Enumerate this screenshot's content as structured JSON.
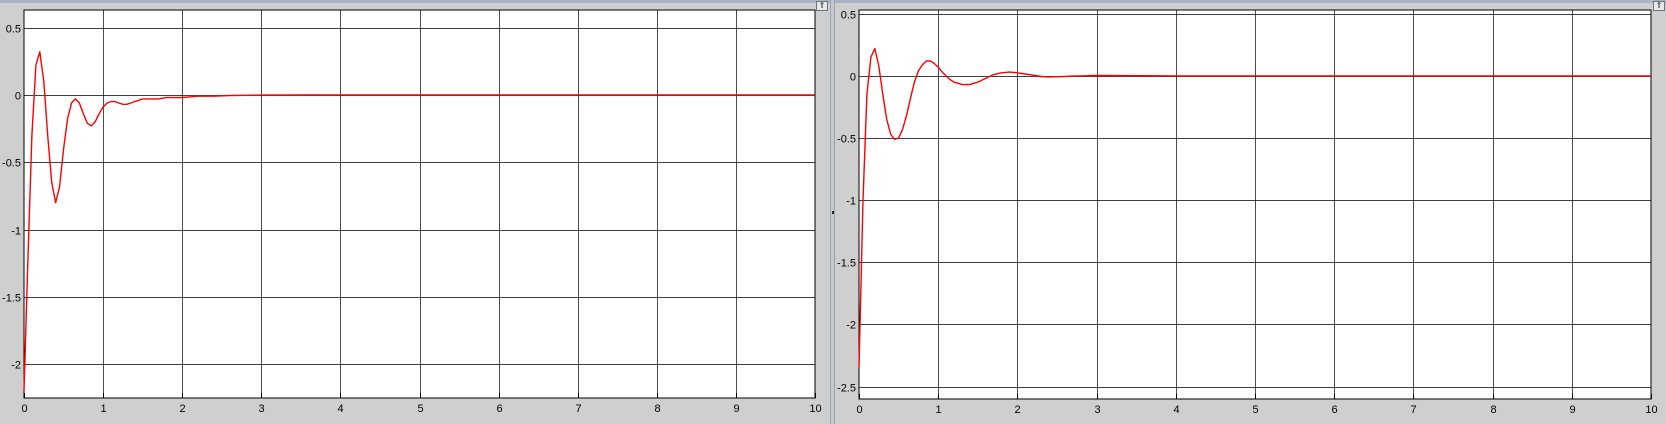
{
  "panels": [
    {
      "dock_button_icon": "maximize-icon",
      "dock_button_glyph": "⇑"
    },
    {
      "dock_button_icon": "maximize-icon",
      "dock_button_glyph": "⇑"
    }
  ],
  "colors": {
    "trace": "#ff0000",
    "grid": "#000000",
    "plot_bg": "#ffffff",
    "frame_bg": "#cfcfcf"
  },
  "chart_data": [
    {
      "type": "line",
      "title": "",
      "xlabel": "",
      "ylabel": "",
      "xlim": [
        0,
        10
      ],
      "ylim": [
        -2.25,
        0.63
      ],
      "xticks": [
        0,
        1,
        2,
        3,
        4,
        5,
        6,
        7,
        8,
        9,
        10
      ],
      "xtick_labels": [
        "0",
        "1",
        "2",
        "3",
        "4",
        "5",
        "6",
        "7",
        "8",
        "9",
        "10"
      ],
      "yticks": [
        0.5,
        0,
        -0.5,
        -1,
        -1.5,
        -2
      ],
      "ytick_labels": [
        "0.5",
        "0",
        "-0.5",
        "-1",
        "-1.5",
        "-2"
      ],
      "grid": true,
      "legend": "none",
      "series": [
        {
          "color": "#ff0000",
          "x": [
            0,
            0.05,
            0.1,
            0.15,
            0.2,
            0.25,
            0.3,
            0.35,
            0.4,
            0.45,
            0.5,
            0.55,
            0.6,
            0.65,
            0.7,
            0.75,
            0.8,
            0.85,
            0.9,
            0.95,
            1.0,
            1.05,
            1.1,
            1.15,
            1.2,
            1.25,
            1.3,
            1.35,
            1.4,
            1.45,
            1.5,
            1.6,
            1.7,
            1.8,
            1.9,
            2.0,
            2.2,
            2.4,
            2.6,
            2.8,
            3.0,
            3.5,
            4.0,
            5.0,
            6.0,
            7.0,
            8.0,
            9.0,
            10.0
          ],
          "y": [
            -2.2,
            -1.2,
            -0.3,
            0.22,
            0.32,
            0.1,
            -0.3,
            -0.65,
            -0.8,
            -0.68,
            -0.4,
            -0.18,
            -0.06,
            -0.03,
            -0.06,
            -0.14,
            -0.21,
            -0.23,
            -0.2,
            -0.14,
            -0.09,
            -0.06,
            -0.05,
            -0.05,
            -0.06,
            -0.07,
            -0.07,
            -0.06,
            -0.05,
            -0.04,
            -0.03,
            -0.03,
            -0.03,
            -0.02,
            -0.02,
            -0.02,
            -0.01,
            -0.01,
            -0.005,
            -0.003,
            -0.002,
            -0.001,
            0,
            0,
            0,
            0,
            0,
            0,
            0
          ]
        }
      ]
    },
    {
      "type": "line",
      "title": "",
      "xlabel": "",
      "ylabel": "",
      "xlim": [
        0,
        10
      ],
      "ylim": [
        -2.6,
        0.53
      ],
      "xticks": [
        0,
        1,
        2,
        3,
        4,
        5,
        6,
        7,
        8,
        9,
        10
      ],
      "xtick_labels": [
        "0",
        "1",
        "2",
        "3",
        "4",
        "5",
        "6",
        "7",
        "8",
        "9",
        "10"
      ],
      "yticks": [
        0.5,
        0,
        -0.5,
        -1,
        -1.5,
        -2,
        -2.5
      ],
      "ytick_labels": [
        "0.5",
        "0",
        "-0.5",
        "-1",
        "-1.5",
        "-2",
        "-2.5"
      ],
      "grid": true,
      "legend": "none",
      "series": [
        {
          "color": "#ff0000",
          "x": [
            0,
            0.05,
            0.1,
            0.15,
            0.2,
            0.25,
            0.3,
            0.35,
            0.4,
            0.45,
            0.5,
            0.55,
            0.6,
            0.65,
            0.7,
            0.75,
            0.8,
            0.85,
            0.9,
            0.95,
            1.0,
            1.05,
            1.1,
            1.15,
            1.2,
            1.25,
            1.3,
            1.35,
            1.4,
            1.45,
            1.5,
            1.6,
            1.7,
            1.8,
            1.9,
            2.0,
            2.1,
            2.2,
            2.3,
            2.4,
            2.5,
            2.6,
            2.7,
            2.8,
            3.0,
            3.5,
            4.0,
            5.0,
            6.0,
            7.0,
            8.0,
            9.0,
            10.0
          ],
          "y": [
            -2.35,
            -1.0,
            -0.15,
            0.15,
            0.22,
            0.08,
            -0.15,
            -0.35,
            -0.47,
            -0.51,
            -0.5,
            -0.43,
            -0.32,
            -0.18,
            -0.05,
            0.04,
            0.09,
            0.12,
            0.12,
            0.1,
            0.07,
            0.03,
            0.0,
            -0.03,
            -0.05,
            -0.06,
            -0.07,
            -0.07,
            -0.07,
            -0.06,
            -0.05,
            -0.02,
            0.01,
            0.025,
            0.03,
            0.025,
            0.015,
            0.005,
            -0.005,
            -0.008,
            -0.007,
            -0.005,
            -0.002,
            0.0,
            0.003,
            0.001,
            0,
            0,
            0,
            0,
            0,
            0,
            0
          ]
        }
      ]
    }
  ]
}
